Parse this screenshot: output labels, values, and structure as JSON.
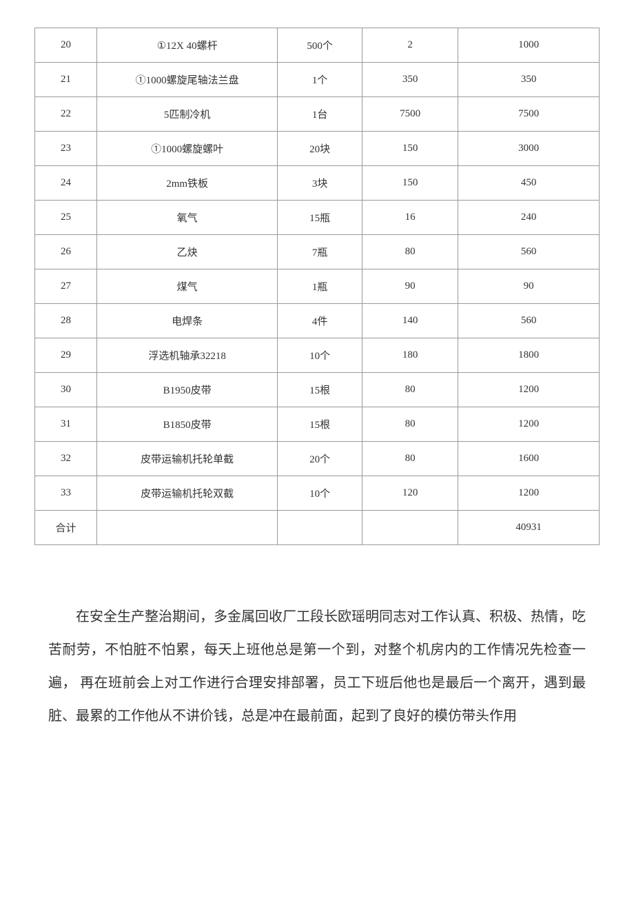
{
  "table": {
    "columns": [
      {
        "width": "11%",
        "align": "center"
      },
      {
        "width": "32%",
        "align": "center"
      },
      {
        "width": "15%",
        "align": "center"
      },
      {
        "width": "17%",
        "align": "center"
      },
      {
        "width": "25%",
        "align": "center"
      }
    ],
    "border_color": "#999999",
    "text_color": "#333333",
    "font_size": 15,
    "cell_padding": 14,
    "rows": [
      {
        "c0": "20",
        "c1": "①12X 40螺杆",
        "c2": "500个",
        "c3": "2",
        "c4": "1000"
      },
      {
        "c0": "21",
        "c1": "①1000螺旋尾轴法兰盘",
        "c2": "1个",
        "c3": "350",
        "c4": "350"
      },
      {
        "c0": "22",
        "c1": "5匹制冷机",
        "c2": "1台",
        "c3": "7500",
        "c4": "7500"
      },
      {
        "c0": "23",
        "c1": "①1000螺旋螺叶",
        "c2": "20块",
        "c3": "150",
        "c4": "3000"
      },
      {
        "c0": "24",
        "c1": "2mm铁板",
        "c2": "3块",
        "c3": "150",
        "c4": "450"
      },
      {
        "c0": "25",
        "c1": "氧气",
        "c2": "15瓶",
        "c3": "16",
        "c4": "240"
      },
      {
        "c0": "26",
        "c1": "乙炔",
        "c2": "7瓶",
        "c3": "80",
        "c4": "560"
      },
      {
        "c0": "27",
        "c1": "煤气",
        "c2": "1瓶",
        "c3": "90",
        "c4": "90"
      },
      {
        "c0": "28",
        "c1": "电焊条",
        "c2": "4件",
        "c3": "140",
        "c4": "560"
      },
      {
        "c0": "29",
        "c1": "浮选机轴承32218",
        "c2": "10个",
        "c3": "180",
        "c4": "1800"
      },
      {
        "c0": "30",
        "c1": "B1950皮带",
        "c2": "15根",
        "c3": "80",
        "c4": "1200"
      },
      {
        "c0": "31",
        "c1": "B1850皮带",
        "c2": "15根",
        "c3": "80",
        "c4": "1200"
      },
      {
        "c0": "32",
        "c1": "皮带运输机托轮单截",
        "c2": "20个",
        "c3": "80",
        "c4": "1600"
      },
      {
        "c0": "33",
        "c1": "皮带运输机托轮双截",
        "c2": "10个",
        "c3": "120",
        "c4": "1200"
      },
      {
        "c0": "合计",
        "c1": "",
        "c2": "",
        "c3": "",
        "c4": "40931"
      }
    ]
  },
  "paragraph": {
    "text": "在安全生产整治期间，多金属回收厂工段长欧瑶明同志对工作认真、积极、热情，吃苦耐劳，不怕脏不怕累，每天上班他总是第一个到，对整个机房内的工作情况先检查一遍， 再在班前会上对工作进行合理安排部署，员工下班后他也是最后一个离开，遇到最脏、最累的工作他从不讲价钱，总是冲在最前面，起到了良好的模仿带头作用",
    "font_size": 20,
    "line_height": 2.4,
    "text_color": "#333333",
    "text_indent": "2em"
  }
}
